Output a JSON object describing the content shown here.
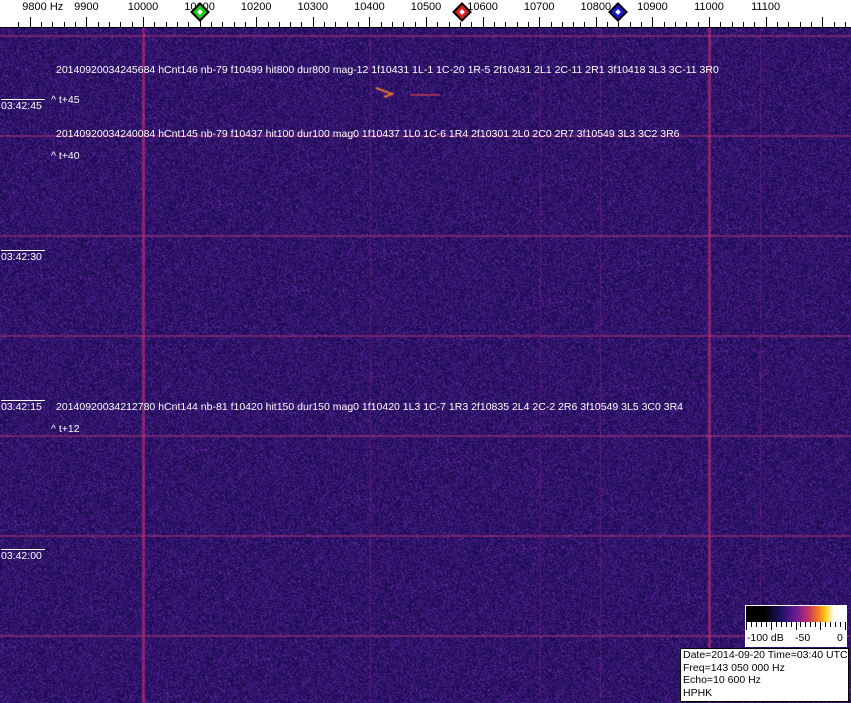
{
  "freq_axis": {
    "labels": [
      "9800 Hz",
      "9900",
      "10000",
      "10100",
      "10200",
      "10300",
      "10400",
      "10500",
      "10600",
      "10700",
      "10800",
      "10900",
      "11000",
      "11100"
    ],
    "values": [
      9800,
      9900,
      10000,
      10100,
      10200,
      10300,
      10400,
      10500,
      10600,
      10700,
      10800,
      10900,
      11000,
      11100
    ]
  },
  "markers": [
    {
      "name": "green-marker",
      "freq": 10100,
      "color": "#22c822"
    },
    {
      "name": "red-marker",
      "freq": 10563,
      "color": "#d42020"
    },
    {
      "name": "blue-marker",
      "freq": 10839,
      "color": "#1a1ad0"
    }
  ],
  "time_labels": [
    "03:42:45",
    "03:42:30",
    "03:42:15",
    "03:42:00"
  ],
  "detections": [
    {
      "text": "20140920034245684 hCnt146 nb-79 f10499 hit800 dur800 mag-12 1f10431 1L-1 1C-20 1R-5 2f10431 2L1 2C-11 2R1 3f10418 3L3 3C-11 3R0",
      "offset": "^ t+45"
    },
    {
      "text": "20140920034240084 hCnt145 nb-79 f10437 hit100 dur100 mag0 1f10437 1L0 1C-6 1R4 2f10301 2L0 2C0 2R7 3f10549 3L3 3C2 3R6",
      "offset": "^ t+40"
    },
    {
      "text": "20140920034212780 hCnt144 nb-81 f10420 hit150 dur150 mag0 1f10420 1L3 1C-7 1R3 2f10835 2L4 2C-2 2R6 3f10549 3L5 3C0 3R4",
      "offset": "^ t+12"
    }
  ],
  "colorbar": {
    "labels": [
      "-100 dB",
      "-50",
      "0"
    ]
  },
  "info": {
    "date_time": "Date=2014-09-20 Time=03:40 UTC",
    "freq": "Freq=143 050 000 Hz",
    "echo": "Echo=10 600 Hz",
    "station": "HPHK"
  },
  "colors": {
    "background": "#2a1a78",
    "grid": "#a0307a"
  }
}
